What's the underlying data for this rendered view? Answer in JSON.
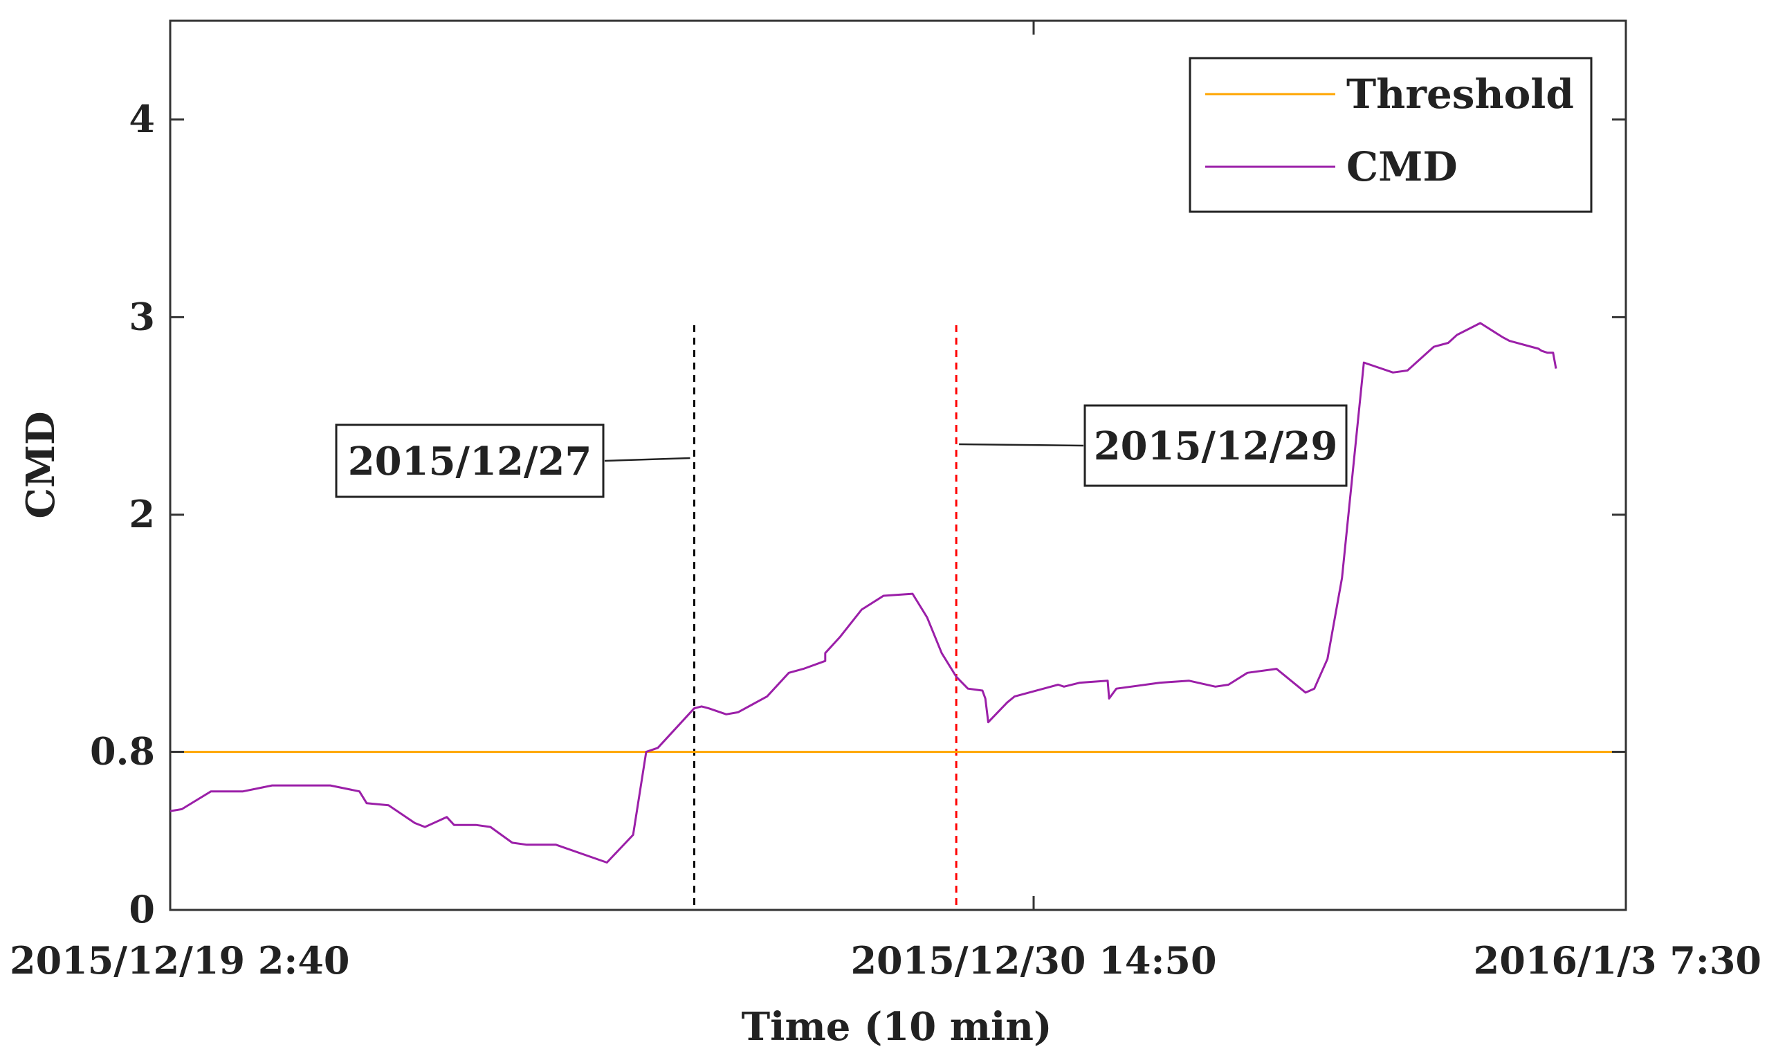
{
  "chart_data": {
    "type": "line",
    "title": "",
    "xlabel": "Time (10 min)",
    "ylabel": "CMD",
    "x_tick_labels": [
      "2015/12/19 2:40",
      "2015/12/30 14:50",
      "2016/1/3 7:30"
    ],
    "y_tick_labels": [
      "0",
      "0.8",
      "2",
      "3",
      "4"
    ],
    "y_tick_values": [
      0,
      0.8,
      2,
      3,
      4
    ],
    "ylim": [
      0,
      4.5
    ],
    "xlim": [
      0,
      1
    ],
    "x_units": "fraction of time span (2015/12/19 2:40 to 2016/1/3 7:30)",
    "grid": false,
    "legend_position": "top-right",
    "series": [
      {
        "name": "Threshold",
        "color": "#FFA500",
        "x": [
          0,
          1
        ],
        "values": [
          0.8,
          0.8
        ]
      },
      {
        "name": "CMD",
        "color": "#9B1FA8",
        "x": [
          0,
          0.008,
          0.028,
          0.05,
          0.07,
          0.075,
          0.085,
          0.11,
          0.13,
          0.135,
          0.15,
          0.168,
          0.175,
          0.19,
          0.195,
          0.21,
          0.22,
          0.235,
          0.245,
          0.265,
          0.3,
          0.318,
          0.327,
          0.335,
          0.36,
          0.365,
          0.37,
          0.382,
          0.39,
          0.4,
          0.41,
          0.425,
          0.435,
          0.45,
          0.45,
          0.46,
          0.475,
          0.49,
          0.51,
          0.52,
          0.53,
          0.54,
          0.548,
          0.558,
          0.56,
          0.562,
          0.575,
          0.58,
          0.6,
          0.61,
          0.614,
          0.625,
          0.644,
          0.645,
          0.65,
          0.68,
          0.7,
          0.718,
          0.727,
          0.74,
          0.76,
          0.78,
          0.786,
          0.795,
          0.805,
          0.82,
          0.84,
          0.85,
          0.868,
          0.878,
          0.884,
          0.9,
          0.915,
          0.92,
          0.94,
          0.942,
          0.946,
          0.95,
          0.952
        ],
        "values": [
          0.5,
          0.51,
          0.6,
          0.6,
          0.63,
          0.63,
          0.63,
          0.63,
          0.6,
          0.54,
          0.53,
          0.44,
          0.42,
          0.47,
          0.43,
          0.43,
          0.42,
          0.34,
          0.33,
          0.33,
          0.24,
          0.38,
          0.8,
          0.82,
          1.02,
          1.03,
          1.02,
          0.99,
          1.0,
          1.04,
          1.08,
          1.2,
          1.22,
          1.26,
          1.3,
          1.38,
          1.52,
          1.59,
          1.6,
          1.48,
          1.3,
          1.18,
          1.12,
          1.11,
          1.07,
          0.95,
          1.05,
          1.08,
          1.12,
          1.14,
          1.13,
          1.15,
          1.16,
          1.07,
          1.12,
          1.15,
          1.16,
          1.13,
          1.14,
          1.2,
          1.22,
          1.1,
          1.12,
          1.27,
          1.68,
          2.77,
          2.72,
          2.73,
          2.85,
          2.87,
          2.91,
          2.97,
          2.9,
          2.88,
          2.84,
          2.83,
          2.82,
          2.82,
          2.74
        ]
      }
    ],
    "markers": [
      {
        "label": "2015/12/27",
        "x": 0.36,
        "color": "#000000"
      },
      {
        "label": "2015/12/29",
        "x": 0.54,
        "color": "#FF0000"
      }
    ]
  }
}
